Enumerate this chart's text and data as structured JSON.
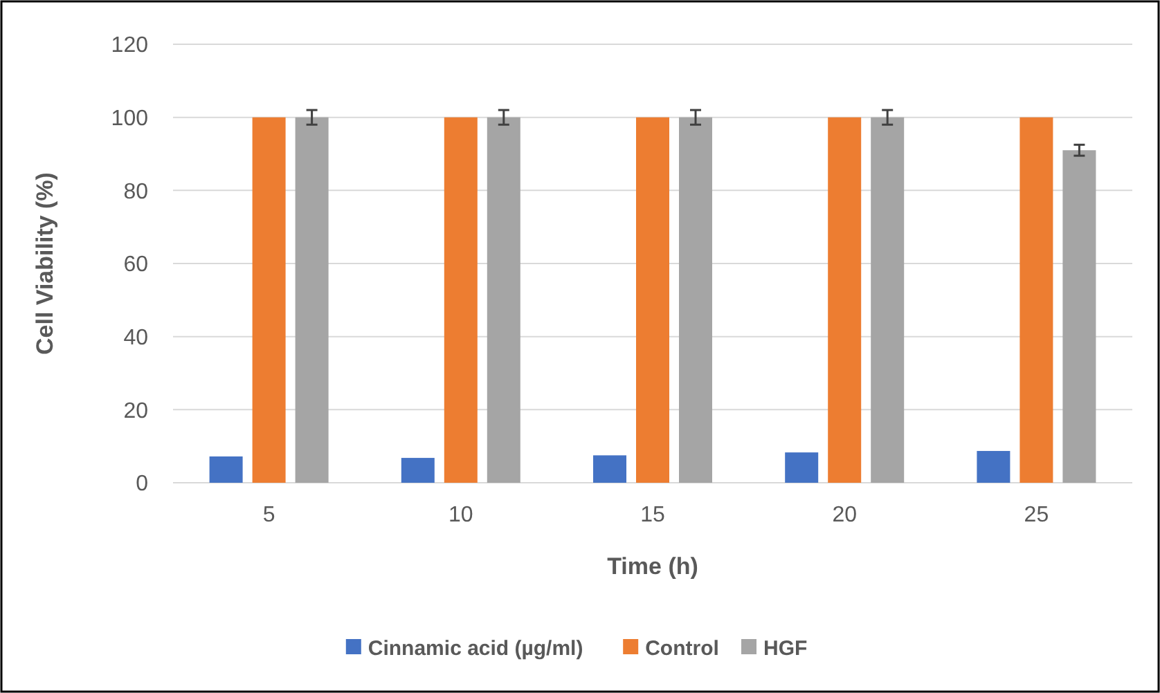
{
  "chart_data": {
    "type": "bar",
    "xlabel": "Time (h)",
    "ylabel": "Cell Viability (%)",
    "categories": [
      "5",
      "10",
      "15",
      "20",
      "25"
    ],
    "series": [
      {
        "name": "Cinnamic acid (µg/ml)",
        "color": "#4472c4",
        "values": [
          7.2,
          6.8,
          7.5,
          8.3,
          8.7
        ]
      },
      {
        "name": "Control",
        "color": "#ed7d31",
        "values": [
          100,
          100,
          100,
          100,
          100
        ]
      },
      {
        "name": "HGF",
        "color": "#a5a5a5",
        "values": [
          100,
          100,
          100,
          100,
          91
        ],
        "errors": [
          2,
          2,
          2,
          2,
          1.5
        ]
      }
    ],
    "ylim": [
      0,
      120
    ],
    "yticks": [
      0,
      20,
      40,
      60,
      80,
      100,
      120
    ],
    "grid": "y",
    "legend": "bottom"
  }
}
